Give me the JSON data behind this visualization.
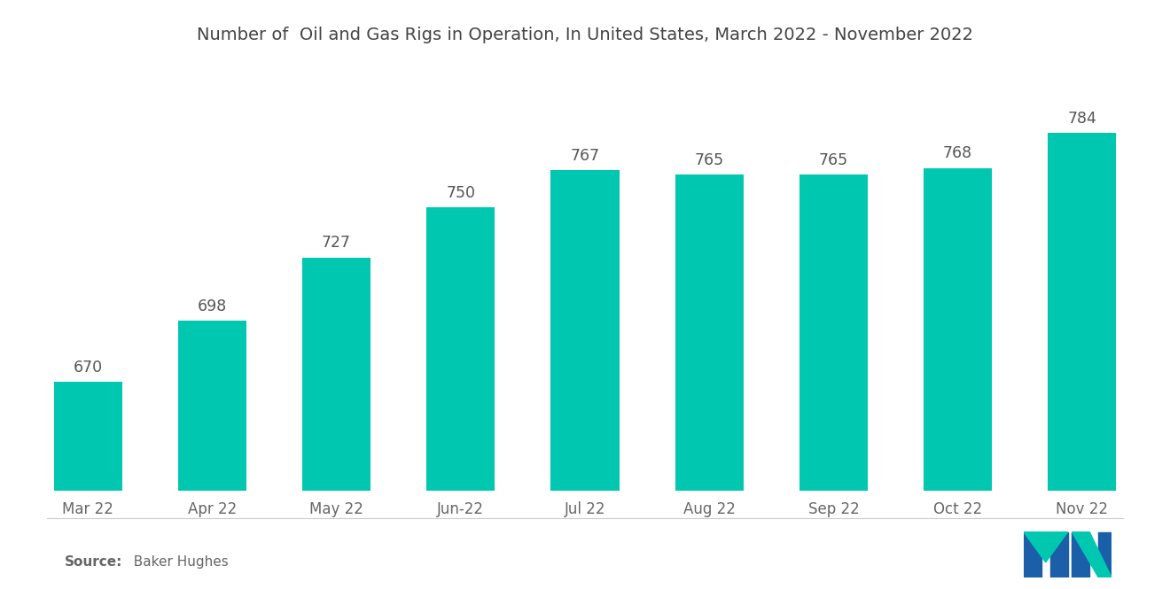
{
  "title": "Number of  Oil and Gas Rigs in Operation, In United States, March 2022 - November 2022",
  "categories": [
    "Mar 22",
    "Apr 22",
    "May 22",
    "Jun-22",
    "Jul 22",
    "Aug 22",
    "Sep 22",
    "Oct 22",
    "Nov 22"
  ],
  "values": [
    670,
    698,
    727,
    750,
    767,
    765,
    765,
    768,
    784
  ],
  "bar_color": "#00C8B0",
  "background_color": "#ffffff",
  "title_fontsize": 14.0,
  "label_fontsize": 12.5,
  "tick_fontsize": 12,
  "source_bold": "Source:",
  "source_rest": "  Baker Hughes",
  "ylim_min": 620,
  "ylim_max": 820,
  "bar_width": 0.55,
  "bar_bottom": 620
}
